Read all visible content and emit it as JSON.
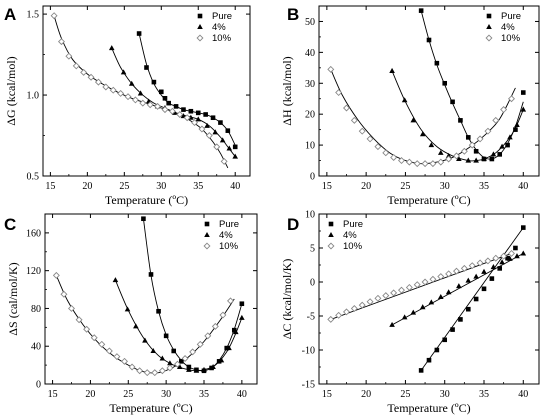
{
  "figure": {
    "panels": [
      {
        "letter": "A",
        "ylabel": "ΔG (kcal/mol)",
        "xlabel": "Temperature (ºC)"
      },
      {
        "letter": "B",
        "ylabel": "ΔH (kcal/mol)",
        "xlabel": "Temperature (ºC)"
      },
      {
        "letter": "C",
        "ylabel": "ΔS (cal/mol/K)",
        "xlabel": "Temperature (ºC)"
      },
      {
        "letter": "D",
        "ylabel": "ΔC (kcal/mol/K)",
        "xlabel": "Temperature (ºC)"
      }
    ]
  },
  "chart_data": [
    {
      "type": "scatter",
      "panel": "A",
      "title": "",
      "xlabel": "Temperature (ºC)",
      "ylabel": "ΔG (kcal/mol)",
      "xlim": [
        14,
        42
      ],
      "ylim": [
        0.5,
        1.55
      ],
      "xticks": [
        15,
        20,
        25,
        30,
        35,
        40
      ],
      "yticks": [
        0.5,
        1.0,
        1.5
      ],
      "ytick_labels": [
        "0.5",
        "1.0",
        "1.5"
      ],
      "legend_position": "top-right",
      "series": [
        {
          "name": "Pure",
          "marker": "square",
          "x": [
            27,
            28,
            29,
            30,
            30.5,
            31,
            32,
            33,
            34,
            35,
            36,
            37,
            38,
            39,
            40
          ],
          "y": [
            1.38,
            1.17,
            1.08,
            1.02,
            0.98,
            0.95,
            0.93,
            0.91,
            0.9,
            0.89,
            0.88,
            0.86,
            0.83,
            0.78,
            0.68
          ],
          "fit_x": [
            27,
            28,
            29,
            30,
            31,
            32,
            33,
            34,
            35,
            36,
            37,
            38,
            39,
            40
          ],
          "fit_y": [
            1.38,
            1.19,
            1.07,
            1.0,
            0.95,
            0.93,
            0.91,
            0.9,
            0.89,
            0.88,
            0.86,
            0.83,
            0.78,
            0.69
          ]
        },
        {
          "name": "4%",
          "marker": "triangle",
          "x": [
            23.3,
            24.9,
            26.0,
            27.2,
            28.3,
            29.5,
            30.5,
            31.8,
            33.0,
            34.0,
            35.0,
            36.2,
            37.3,
            38.3,
            39.2,
            40.0
          ],
          "y": [
            1.29,
            1.14,
            1.07,
            1.01,
            0.96,
            0.93,
            0.92,
            0.89,
            0.87,
            0.86,
            0.85,
            0.81,
            0.77,
            0.72,
            0.67,
            0.62
          ],
          "fit_x": [
            23.3,
            24.5,
            26,
            27.5,
            29,
            30.5,
            32,
            33.5,
            35,
            36.5,
            38,
            39,
            40
          ],
          "fit_y": [
            1.29,
            1.17,
            1.07,
            1.0,
            0.95,
            0.92,
            0.89,
            0.87,
            0.85,
            0.81,
            0.74,
            0.68,
            0.62
          ]
        },
        {
          "name": "10%",
          "marker": "diamond-open",
          "x": [
            15.5,
            16.5,
            17.5,
            18.5,
            19.5,
            20.5,
            21.5,
            22.5,
            23.5,
            24.5,
            25.5,
            26.5,
            27.5,
            28.5,
            29.5,
            30.5,
            31.5,
            32.5,
            33.5,
            34.5,
            35.5,
            36.5,
            37.5,
            38.5
          ],
          "y": [
            1.49,
            1.33,
            1.24,
            1.18,
            1.14,
            1.11,
            1.08,
            1.05,
            1.03,
            1.01,
            0.99,
            0.97,
            0.95,
            0.94,
            0.93,
            0.91,
            0.9,
            0.88,
            0.86,
            0.83,
            0.79,
            0.75,
            0.68,
            0.59
          ],
          "fit_x": [
            15.5,
            16.5,
            18,
            20,
            22,
            24,
            26,
            28,
            30,
            32,
            34,
            35.5,
            37,
            38,
            39
          ],
          "fit_y": [
            1.49,
            1.35,
            1.22,
            1.13,
            1.07,
            1.02,
            0.98,
            0.95,
            0.92,
            0.89,
            0.84,
            0.79,
            0.71,
            0.64,
            0.55
          ]
        }
      ]
    },
    {
      "type": "scatter",
      "panel": "B",
      "title": "",
      "xlabel": "Temperature (ºC)",
      "ylabel": "ΔH (kcal/mol)",
      "xlim": [
        14,
        42
      ],
      "ylim": [
        0,
        55
      ],
      "xticks": [
        15,
        20,
        25,
        30,
        35,
        40
      ],
      "yticks": [
        0,
        10,
        20,
        30,
        40,
        50
      ],
      "ytick_labels": [
        "0",
        "10",
        "20",
        "30",
        "40",
        "50"
      ],
      "legend_position": "top-right",
      "series": [
        {
          "name": "Pure",
          "marker": "square",
          "x": [
            27,
            28,
            29,
            30,
            31,
            32,
            33,
            34,
            35,
            36,
            37,
            38,
            39,
            40
          ],
          "y": [
            53.5,
            44,
            36.5,
            30,
            24,
            18,
            12.5,
            8,
            5.5,
            5.5,
            7,
            10,
            15,
            27
          ],
          "fit_x": [
            27,
            28,
            29,
            30,
            31,
            32,
            33,
            34,
            35,
            36,
            37,
            38,
            39,
            40
          ],
          "fit_y": [
            53.5,
            44,
            36,
            29.5,
            23.5,
            18,
            12.5,
            8.5,
            6,
            5.5,
            7,
            10.5,
            16,
            24
          ]
        },
        {
          "name": "4%",
          "marker": "triangle",
          "x": [
            23.3,
            24.9,
            26.0,
            27.2,
            28.3,
            29.5,
            30.5,
            31.8,
            33.0,
            34.0,
            35.0,
            36.2,
            37.3,
            38.3,
            39.2,
            40.0
          ],
          "y": [
            34,
            24.5,
            18,
            13.5,
            10,
            7.5,
            6.5,
            5.5,
            5,
            5,
            5.5,
            7,
            9.5,
            12.5,
            16.5,
            21.5
          ],
          "fit_x": [
            23.3,
            25,
            27,
            29,
            31,
            33,
            34,
            35,
            36.5,
            38,
            39,
            40
          ],
          "fit_y": [
            34,
            24,
            15,
            9.5,
            6.5,
            5,
            5,
            5.5,
            7.5,
            11.5,
            15.5,
            21.5
          ]
        },
        {
          "name": "10%",
          "marker": "diamond-open",
          "x": [
            15.5,
            16.5,
            17.5,
            18.5,
            19.5,
            20.5,
            21.5,
            22.5,
            23.5,
            24.5,
            25.5,
            26.5,
            27.5,
            28.5,
            29.5,
            30.5,
            31.5,
            32.5,
            33.5,
            34.5,
            35.5,
            36.5,
            37.5,
            38.5
          ],
          "y": [
            34.5,
            27,
            22,
            18,
            14.5,
            12,
            9.5,
            7.5,
            6,
            5,
            4.5,
            4,
            4,
            4,
            4.5,
            5.5,
            6.5,
            8,
            10,
            12,
            14.5,
            18,
            21.5,
            25
          ],
          "fit_x": [
            15.5,
            17,
            19,
            21,
            23,
            25,
            27,
            29,
            31,
            33,
            35,
            37,
            39
          ],
          "fit_y": [
            34.5,
            26,
            18,
            12,
            7.5,
            5,
            4,
            4.5,
            6,
            9,
            13,
            18.5,
            28.5
          ]
        }
      ]
    },
    {
      "type": "scatter",
      "panel": "C",
      "title": "",
      "xlabel": "Temperature (ºC)",
      "ylabel": "ΔS (cal/mol/K)",
      "xlim": [
        14,
        42
      ],
      "ylim": [
        0,
        180
      ],
      "xticks": [
        15,
        20,
        25,
        30,
        35,
        40
      ],
      "yticks": [
        0,
        40,
        80,
        120,
        160
      ],
      "ytick_labels": [
        "0",
        "40",
        "80",
        "120",
        "160"
      ],
      "legend_position": "top-right",
      "series": [
        {
          "name": "Pure",
          "marker": "square",
          "x": [
            27,
            28,
            29,
            30,
            31,
            32,
            33,
            34,
            35,
            36,
            37,
            38,
            39,
            40
          ],
          "y": [
            175,
            116,
            77,
            51,
            35,
            24,
            18,
            15,
            14,
            17,
            24,
            38,
            57,
            85
          ],
          "fit_x": [
            27,
            28,
            29,
            30,
            31,
            32,
            33,
            34,
            35,
            36,
            37,
            38,
            39,
            40
          ],
          "fit_y": [
            175,
            115,
            77,
            52,
            36,
            25,
            18,
            15,
            14,
            17,
            25,
            38,
            58,
            85
          ]
        },
        {
          "name": "4%",
          "marker": "triangle",
          "x": [
            23.3,
            24.9,
            26.0,
            27.2,
            28.3,
            29.5,
            30.5,
            31.8,
            33.0,
            34.0,
            35.0,
            36.2,
            37.3,
            38.3,
            39.2,
            40.0
          ],
          "y": [
            110,
            79,
            61,
            46,
            35,
            27,
            22,
            18,
            15,
            14,
            15,
            18,
            25,
            38,
            55,
            70
          ],
          "fit_x": [
            23.3,
            25,
            27,
            29,
            31,
            33,
            34,
            35,
            36.5,
            38,
            39,
            40
          ],
          "fit_y": [
            110,
            78,
            49,
            30,
            20,
            15,
            14,
            15,
            20,
            34,
            50,
            70
          ]
        },
        {
          "name": "10%",
          "marker": "diamond-open",
          "x": [
            15.5,
            16.5,
            17.5,
            18.5,
            19.5,
            20.5,
            21.5,
            22.5,
            23.5,
            24.5,
            25.5,
            26.5,
            27.5,
            28.5,
            29.5,
            30.5,
            31.5,
            32.5,
            33.5,
            34.5,
            35.5,
            36.5,
            37.5,
            38.5
          ],
          "y": [
            115,
            95,
            80,
            68,
            58,
            49,
            42,
            35,
            29,
            24,
            18,
            14,
            12,
            12,
            14,
            17,
            21,
            27,
            34,
            42,
            51,
            61,
            73,
            88
          ],
          "fit_x": [
            15.5,
            17,
            19,
            21,
            23,
            25,
            27,
            29,
            31,
            33,
            35,
            37,
            39
          ],
          "fit_y": [
            115,
            88,
            63,
            44,
            30,
            20,
            13,
            12,
            18,
            29,
            45,
            66,
            90
          ]
        }
      ]
    },
    {
      "type": "scatter",
      "panel": "D",
      "title": "",
      "xlabel": "Temperature (ºC)",
      "ylabel": "ΔC (kcal/mol/K)",
      "xlim": [
        14,
        42
      ],
      "ylim": [
        -15,
        10
      ],
      "xticks": [
        15,
        20,
        25,
        30,
        35,
        40
      ],
      "yticks": [
        -15,
        -10,
        -5,
        0,
        5,
        10
      ],
      "ytick_labels": [
        "-15",
        "-10",
        "-5",
        "0",
        "5",
        "10"
      ],
      "legend_position": "top-left",
      "series": [
        {
          "name": "Pure",
          "marker": "square",
          "x": [
            27,
            28,
            29,
            30,
            31,
            32,
            33,
            34,
            35,
            36,
            37,
            38,
            39,
            40
          ],
          "y": [
            -13,
            -11.5,
            -10,
            -8.5,
            -7,
            -5.5,
            -4,
            -2.5,
            -1,
            0.5,
            2,
            3.5,
            5,
            8
          ],
          "fit_x": [
            27,
            40
          ],
          "fit_y": [
            -13,
            8
          ]
        },
        {
          "name": "4%",
          "marker": "triangle",
          "x": [
            23.3,
            24.9,
            26.0,
            27.2,
            28.3,
            29.5,
            30.5,
            31.8,
            33.0,
            34.0,
            35.0,
            36.2,
            37.3,
            38.3,
            39.2,
            40.0
          ],
          "y": [
            -6.3,
            -5.2,
            -4.5,
            -3.7,
            -3,
            -2.2,
            -1.5,
            -0.6,
            0.2,
            0.8,
            1.5,
            2.2,
            2.9,
            3.4,
            3.8,
            4.2
          ],
          "fit_x": [
            23.3,
            40
          ],
          "fit_y": [
            -6.3,
            4.2
          ]
        },
        {
          "name": "10%",
          "marker": "diamond-open",
          "x": [
            15.5,
            16.5,
            17.5,
            18.5,
            19.5,
            20.5,
            21.5,
            22.5,
            23.5,
            24.5,
            25.5,
            26.5,
            27.5,
            28.5,
            29.5,
            30.5,
            31.5,
            32.5,
            33.5,
            34.5,
            35.5,
            36.5,
            37.5,
            38.5
          ],
          "y": [
            -5.5,
            -4.9,
            -4.4,
            -3.9,
            -3.4,
            -2.9,
            -2.4,
            -2.0,
            -1.6,
            -1.2,
            -0.8,
            -0.4,
            0.0,
            0.4,
            0.8,
            1.2,
            1.6,
            2.0,
            2.4,
            2.8,
            3.1,
            3.5,
            3.8,
            4.2
          ],
          "fit_x": [
            15.5,
            38.5
          ],
          "fit_y": [
            -5.5,
            4.2
          ]
        }
      ]
    }
  ]
}
